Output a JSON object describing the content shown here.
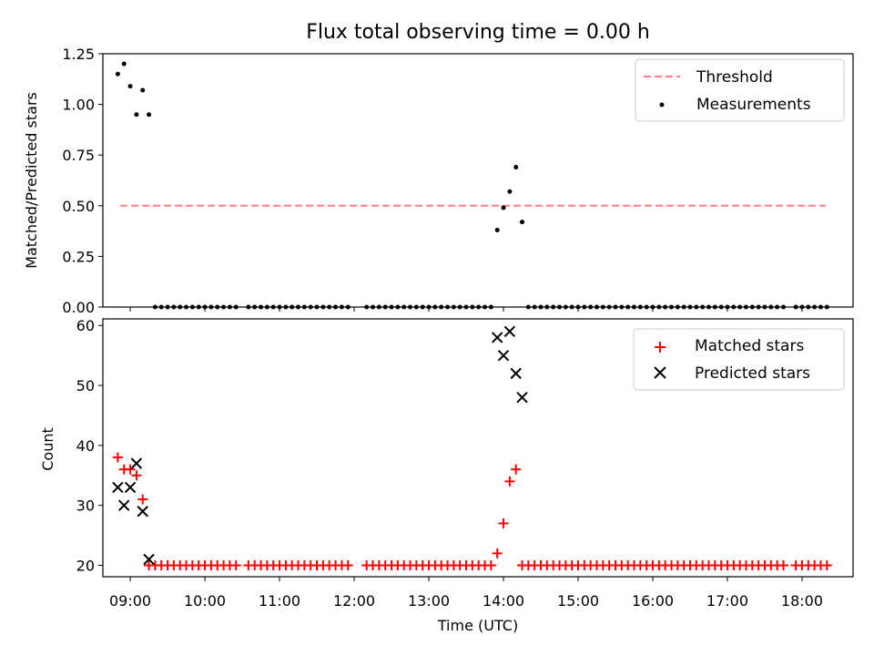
{
  "chart_data": [
    {
      "type": "scatter",
      "title": "Flux total observing time = 0.00 h",
      "ylabel": "Matched/Predicted stars",
      "xlabel": "",
      "xlim": [
        "08:38",
        "18:41"
      ],
      "ylim": [
        0,
        1.25
      ],
      "x_tick_labels": [
        "09:00",
        "10:00",
        "11:00",
        "12:00",
        "13:00",
        "14:00",
        "15:00",
        "16:00",
        "17:00",
        "18:00"
      ],
      "y_tick_labels": [
        "0.00",
        "0.25",
        "0.50",
        "0.75",
        "1.00",
        "1.25"
      ],
      "y_ticks": [
        0,
        0.25,
        0.5,
        0.75,
        1.0,
        1.25
      ],
      "legend_position": "top-right",
      "threshold": {
        "name": "Threshold",
        "y": 0.5,
        "x_start": "08:52",
        "x_end": "18:19",
        "color": "#ff7f7f",
        "style": "dashed"
      },
      "series": [
        {
          "name": "Measurements",
          "color": "#000000",
          "marker": "dot",
          "points": [
            {
              "x": "08:50",
              "y": 1.15
            },
            {
              "x": "08:55",
              "y": 1.2
            },
            {
              "x": "09:00",
              "y": 1.09
            },
            {
              "x": "09:05",
              "y": 0.95
            },
            {
              "x": "09:10",
              "y": 1.07
            },
            {
              "x": "09:15",
              "y": 0.95
            },
            {
              "x": "13:55",
              "y": 0.38
            },
            {
              "x": "14:00",
              "y": 0.49
            },
            {
              "x": "14:05",
              "y": 0.57
            },
            {
              "x": "14:10",
              "y": 0.69
            },
            {
              "x": "14:15",
              "y": 0.42
            }
          ]
        }
      ]
    },
    {
      "type": "scatter",
      "title": "",
      "ylabel": "Count",
      "xlabel": "Time (UTC)",
      "xlim": [
        "08:38",
        "18:41"
      ],
      "ylim": [
        18.1,
        61.1
      ],
      "x_tick_labels": [
        "09:00",
        "10:00",
        "11:00",
        "12:00",
        "13:00",
        "14:00",
        "15:00",
        "16:00",
        "17:00",
        "18:00"
      ],
      "y_tick_labels": [
        "20",
        "30",
        "40",
        "50",
        "60"
      ],
      "y_ticks": [
        20,
        30,
        40,
        50,
        60
      ],
      "legend_position": "top-right",
      "series": [
        {
          "name": "Matched stars",
          "color": "#ff0000",
          "marker": "plus",
          "points": [
            {
              "x": "08:50",
              "y": 38
            },
            {
              "x": "08:55",
              "y": 36
            },
            {
              "x": "09:00",
              "y": 36
            },
            {
              "x": "09:05",
              "y": 35
            },
            {
              "x": "09:10",
              "y": 31
            },
            {
              "x": "09:15",
              "y": 20
            },
            {
              "x": "13:55",
              "y": 22
            },
            {
              "x": "14:00",
              "y": 27
            },
            {
              "x": "14:05",
              "y": 34
            },
            {
              "x": "14:10",
              "y": 36
            },
            {
              "x": "14:15",
              "y": 20
            }
          ]
        },
        {
          "name": "Predicted stars",
          "color": "#000000",
          "marker": "x",
          "points": [
            {
              "x": "08:50",
              "y": 33
            },
            {
              "x": "08:55",
              "y": 30
            },
            {
              "x": "09:00",
              "y": 33
            },
            {
              "x": "09:05",
              "y": 37
            },
            {
              "x": "09:10",
              "y": 29
            },
            {
              "x": "09:15",
              "y": 21
            },
            {
              "x": "13:55",
              "y": 58
            },
            {
              "x": "14:00",
              "y": 55
            },
            {
              "x": "14:05",
              "y": 59
            },
            {
              "x": "14:10",
              "y": 52
            },
            {
              "x": "14:15",
              "y": 48
            }
          ]
        }
      ]
    }
  ],
  "baseline_runs": [
    {
      "from": "09:20",
      "to": "10:25",
      "every_min": 5
    },
    {
      "from": "10:35",
      "to": "11:55",
      "every_min": 5
    },
    {
      "from": "12:10",
      "to": "13:50",
      "every_min": 5
    },
    {
      "from": "14:20",
      "to": "17:45",
      "every_min": 5
    },
    {
      "from": "17:55",
      "to": "18:20",
      "every_min": 5
    }
  ],
  "baseline_values": {
    "ratio": 0,
    "count": 20
  }
}
